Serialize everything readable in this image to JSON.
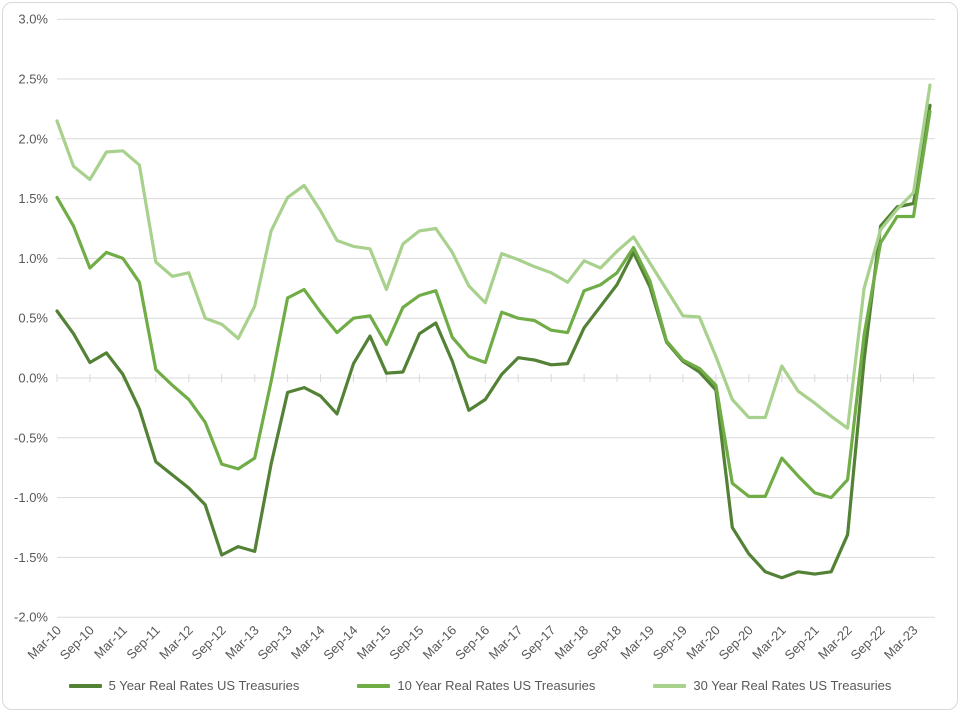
{
  "chart_data": {
    "type": "line",
    "title": "",
    "xlabel": "",
    "ylabel": "",
    "ylim": [
      -2.0,
      3.0
    ],
    "y_step": 0.5,
    "grid": true,
    "legend_position": "bottom",
    "y_tick_labels": [
      "3.0%",
      "2.5%",
      "2.0%",
      "1.5%",
      "1.0%",
      "0.5%",
      "0.0%",
      "-0.5%",
      "-1.0%",
      "-1.5%",
      "-2.0%"
    ],
    "x_tick_labels": [
      "Mar-10",
      "Sep-10",
      "Mar-11",
      "Sep-11",
      "Mar-12",
      "Sep-12",
      "Mar-13",
      "Sep-13",
      "Mar-14",
      "Sep-14",
      "Mar-15",
      "Sep-15",
      "Mar-16",
      "Sep-16",
      "Mar-17",
      "Sep-17",
      "Mar-18",
      "Sep-18",
      "Mar-19",
      "Sep-19",
      "Mar-20",
      "Sep-20",
      "Mar-21",
      "Sep-21",
      "Mar-22",
      "Sep-22",
      "Mar-23"
    ],
    "categories": [
      "Mar-10",
      "Jun-10",
      "Sep-10",
      "Dec-10",
      "Mar-11",
      "Jun-11",
      "Sep-11",
      "Dec-11",
      "Mar-12",
      "Jun-12",
      "Sep-12",
      "Dec-12",
      "Mar-13",
      "Jun-13",
      "Sep-13",
      "Dec-13",
      "Mar-14",
      "Jun-14",
      "Sep-14",
      "Dec-14",
      "Mar-15",
      "Jun-15",
      "Sep-15",
      "Dec-15",
      "Mar-16",
      "Jun-16",
      "Sep-16",
      "Dec-16",
      "Mar-17",
      "Jun-17",
      "Sep-17",
      "Dec-17",
      "Mar-18",
      "Jun-18",
      "Sep-18",
      "Dec-18",
      "Mar-19",
      "Jun-19",
      "Sep-19",
      "Dec-19",
      "Mar-20",
      "Jun-20",
      "Sep-20",
      "Dec-20",
      "Mar-21",
      "Jun-21",
      "Sep-21",
      "Dec-21",
      "Mar-22",
      "Jun-22",
      "Sep-22",
      "Dec-22",
      "Mar-23",
      "Jun-23"
    ],
    "series": [
      {
        "name": "5 Year Real Rates US Treasuries",
        "color": "#538135",
        "values": [
          0.56,
          0.37,
          0.13,
          0.21,
          0.03,
          -0.26,
          -0.7,
          -0.81,
          -0.92,
          -1.06,
          -1.48,
          -1.41,
          -1.45,
          -0.72,
          -0.12,
          -0.08,
          -0.15,
          -0.3,
          0.12,
          0.35,
          0.04,
          0.05,
          0.37,
          0.46,
          0.14,
          -0.27,
          -0.18,
          0.03,
          0.17,
          0.15,
          0.11,
          0.12,
          0.42,
          0.6,
          0.78,
          1.05,
          0.76,
          0.3,
          0.14,
          0.05,
          -0.1,
          -1.25,
          -1.47,
          -1.62,
          -1.67,
          -1.62,
          -1.64,
          -1.62,
          -1.31,
          0.15,
          1.27,
          1.43,
          1.46,
          2.28
        ]
      },
      {
        "name": "10 Year Real Rates US Treasuries",
        "color": "#70ad47",
        "values": [
          1.51,
          1.27,
          0.92,
          1.05,
          1.0,
          0.8,
          0.07,
          -0.06,
          -0.18,
          -0.37,
          -0.72,
          -0.76,
          -0.67,
          -0.03,
          0.67,
          0.74,
          0.55,
          0.38,
          0.5,
          0.52,
          0.28,
          0.59,
          0.69,
          0.73,
          0.34,
          0.18,
          0.13,
          0.55,
          0.5,
          0.48,
          0.4,
          0.38,
          0.73,
          0.78,
          0.88,
          1.09,
          0.81,
          0.31,
          0.15,
          0.08,
          -0.06,
          -0.88,
          -0.99,
          -0.99,
          -0.67,
          -0.82,
          -0.96,
          -1.0,
          -0.85,
          0.36,
          1.13,
          1.35,
          1.35,
          2.23
        ]
      },
      {
        "name": "30 Year Real Rates US Treasuries",
        "color": "#a9d18e",
        "values": [
          2.15,
          1.77,
          1.66,
          1.89,
          1.9,
          1.78,
          0.97,
          0.85,
          0.88,
          0.5,
          0.45,
          0.33,
          0.6,
          1.23,
          1.51,
          1.61,
          1.4,
          1.15,
          1.1,
          1.08,
          0.74,
          1.12,
          1.23,
          1.25,
          1.05,
          0.77,
          0.63,
          1.04,
          0.99,
          0.93,
          0.88,
          0.8,
          0.98,
          0.92,
          1.06,
          1.18,
          0.96,
          0.74,
          0.52,
          0.51,
          0.18,
          -0.18,
          -0.33,
          -0.33,
          0.1,
          -0.11,
          -0.21,
          -0.32,
          -0.42,
          0.75,
          1.24,
          1.41,
          1.55,
          2.45
        ]
      }
    ],
    "colors": {
      "background": "#ffffff",
      "gridline": "#d9d9d9",
      "axis_text": "#595959",
      "legend_text": "#595959",
      "border": "#d9d9d9"
    }
  }
}
